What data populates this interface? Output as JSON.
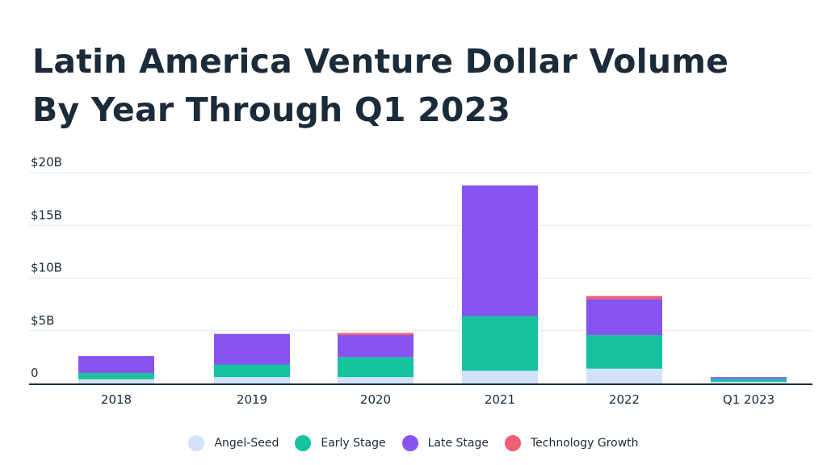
{
  "chart_data": {
    "type": "bar",
    "stacked": true,
    "title": "Latin America Venture Dollar Volume By Year Through Q1 2023",
    "title_lines": [
      "Latin America Venture Dollar Volume",
      "By Year Through Q1 2023"
    ],
    "categories": [
      "2018",
      "2019",
      "2020",
      "2021",
      "2022",
      "Q1 2023"
    ],
    "series": [
      {
        "name": "Angel-Seed",
        "color": "#d3e2f7",
        "values": [
          0.4,
          0.6,
          0.6,
          1.2,
          1.4,
          0.15
        ]
      },
      {
        "name": "Early Stage",
        "color": "#17c2a0",
        "values": [
          0.6,
          1.2,
          1.9,
          5.2,
          3.2,
          0.3
        ]
      },
      {
        "name": "Late Stage",
        "color": "#8754f0",
        "values": [
          1.6,
          2.9,
          2.1,
          12.4,
          3.4,
          0.15
        ]
      },
      {
        "name": "Technology Growth",
        "color": "#ef6074",
        "values": [
          0.0,
          0.0,
          0.2,
          0.0,
          0.3,
          0.0
        ]
      }
    ],
    "y_ticks": [
      {
        "value": 0,
        "label": "0"
      },
      {
        "value": 5,
        "label": "$5B"
      },
      {
        "value": 10,
        "label": "$10B"
      },
      {
        "value": 15,
        "label": "$15B"
      },
      {
        "value": 20,
        "label": "$20B"
      }
    ],
    "ylim": [
      0,
      20
    ],
    "unit": "$B",
    "xlabel": "",
    "ylabel": "",
    "grid": true,
    "legend_position": "bottom"
  }
}
